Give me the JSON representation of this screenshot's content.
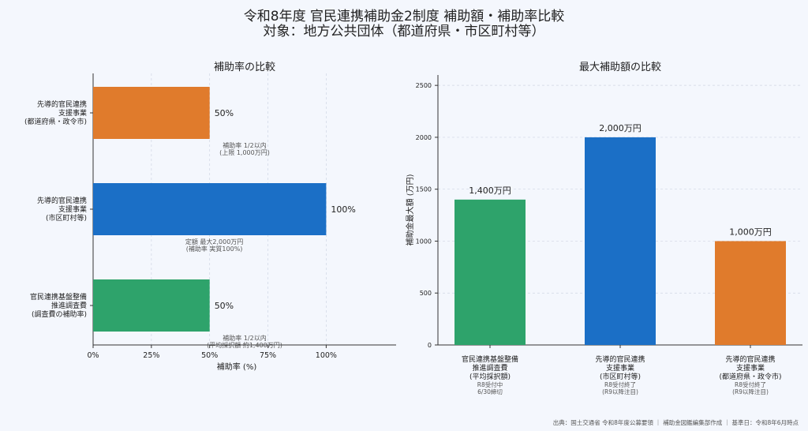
{
  "title_line1": "令和8年度 官民連携補助金2制度 補助額・補助率比較",
  "title_line2": "対象：地方公共団体（都道府県・市区町村等）",
  "source": "出典：国土交通省 令和8年度公募要領 ｜ 補助金図鑑編集部作成 ｜ 基準日：令和8年6月時点",
  "colors": {
    "green": "#2ea36b",
    "blue": "#1b6fc6",
    "orange": "#e07b2c"
  },
  "chart_data": [
    {
      "type": "bar",
      "orientation": "horizontal",
      "title": "補助率の比較",
      "xlabel": "補助率 (%)",
      "xlim": [
        0,
        130
      ],
      "ticks": [
        "0%",
        "25%",
        "50%",
        "75%",
        "100%"
      ],
      "tick_values": [
        0,
        25,
        50,
        75,
        100
      ],
      "categories": [
        {
          "label": [
            "先導的官民連携",
            "支援事業",
            "(都道府県・政令市)"
          ],
          "value": 50,
          "value_label": "50%",
          "color": "orange",
          "note": [
            "補助率 1/2以内",
            "(上限 1,000万円)"
          ]
        },
        {
          "label": [
            "先導的官民連携",
            "支援事業",
            "(市区町村等)"
          ],
          "value": 100,
          "value_label": "100%",
          "color": "blue",
          "note": [
            "定額 最大2,000万円",
            "(補助率 実質100%)"
          ]
        },
        {
          "label": [
            "官民連携基盤整備",
            "推進調査費",
            "(調査費の補助率)"
          ],
          "value": 50,
          "value_label": "50%",
          "color": "green",
          "note": [
            "補助率 1/2以内",
            "(平均採択額 約1,400万円)"
          ]
        }
      ]
    },
    {
      "type": "bar",
      "title": "最大補助額の比較",
      "ylabel": "補助金最大額 (万円)",
      "ylim": [
        0,
        2600
      ],
      "ticks": [
        "0",
        "500",
        "1000",
        "1500",
        "2000",
        "2500"
      ],
      "tick_values": [
        0,
        500,
        1000,
        1500,
        2000,
        2500
      ],
      "categories": [
        {
          "label": [
            "官民連携基盤整備",
            "推進調査費",
            "(平均採択額)"
          ],
          "value": 1400,
          "value_label": "1,400万円",
          "color": "green",
          "status": [
            "R8受付中",
            "6/30締切"
          ]
        },
        {
          "label": [
            "先導的官民連携",
            "支援事業",
            "(市区町村等)"
          ],
          "value": 2000,
          "value_label": "2,000万円",
          "color": "blue",
          "status": [
            "R8受付終了",
            "(R9以降注目)"
          ]
        },
        {
          "label": [
            "先導的官民連携",
            "支援事業",
            "(都道府県・政令市)"
          ],
          "value": 1000,
          "value_label": "1,000万円",
          "color": "orange",
          "status": [
            "R8受付終了",
            "(R9以降注目)"
          ]
        }
      ]
    }
  ]
}
